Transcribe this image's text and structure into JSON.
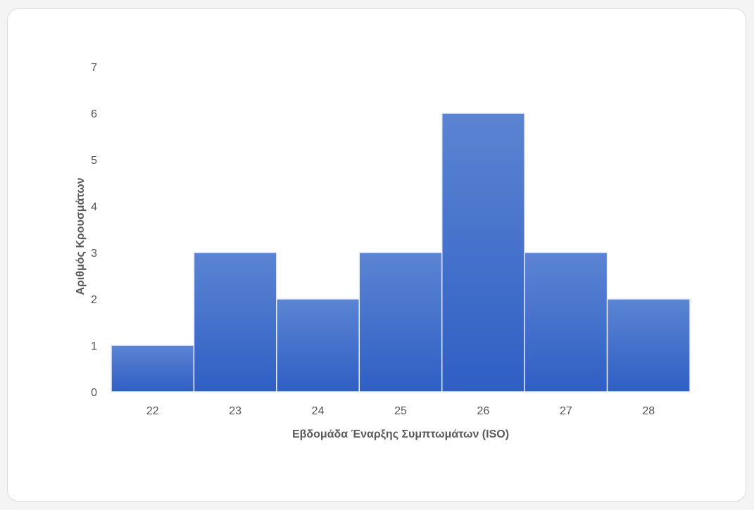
{
  "chart_data": {
    "type": "bar",
    "categories": [
      "22",
      "23",
      "24",
      "25",
      "26",
      "27",
      "28"
    ],
    "values": [
      1,
      3,
      2,
      3,
      6,
      3,
      2
    ],
    "title": "",
    "xlabel": "Εβδομάδα Έναρξης Συμπτωμάτων (ISO)",
    "ylabel": "Αριθμός Κρουσμάτων",
    "ylim": [
      0,
      7
    ],
    "yticks": [
      0,
      1,
      2,
      3,
      4,
      5,
      6,
      7
    ],
    "grid": false,
    "bar_color_top": "#5b84d2",
    "bar_color_bottom": "#2f5fc4",
    "bar_gap": "none"
  }
}
